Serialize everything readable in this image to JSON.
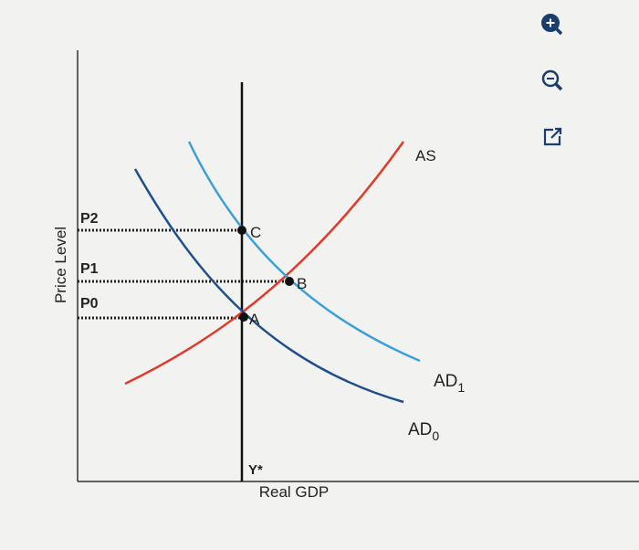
{
  "diagram": {
    "y_axis_label": "Price Level",
    "x_axis_label": "Real GDP",
    "price_levels": [
      "P2",
      "P1",
      "P0"
    ],
    "points": [
      "C",
      "B",
      "A"
    ],
    "potential_output": "Y*",
    "curves": {
      "as": {
        "text": "AS"
      },
      "ad1": {
        "text": "AD",
        "subscript": "1"
      },
      "ad0": {
        "text": "AD",
        "subscript": "0"
      }
    }
  }
}
